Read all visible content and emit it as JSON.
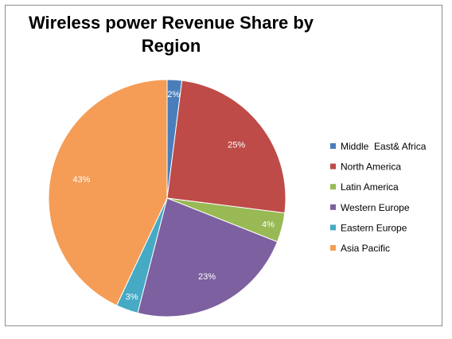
{
  "chart_data": {
    "type": "pie",
    "title": "Wireless power Revenue Share by Region",
    "categories": [
      "Middle  East& Africa",
      "North America",
      "Latin America",
      "Western Europe",
      "Eastern Europe",
      "Asia Pacific"
    ],
    "values": [
      2,
      25,
      4,
      23,
      3,
      43
    ],
    "data_labels": [
      "2%",
      "25%",
      "4%",
      "23%",
      "3%",
      "43%"
    ],
    "colors": [
      "#4a7ebb",
      "#be4b48",
      "#98b954",
      "#7d60a0",
      "#46aac5",
      "#f59d56"
    ],
    "legend_position": "right"
  }
}
